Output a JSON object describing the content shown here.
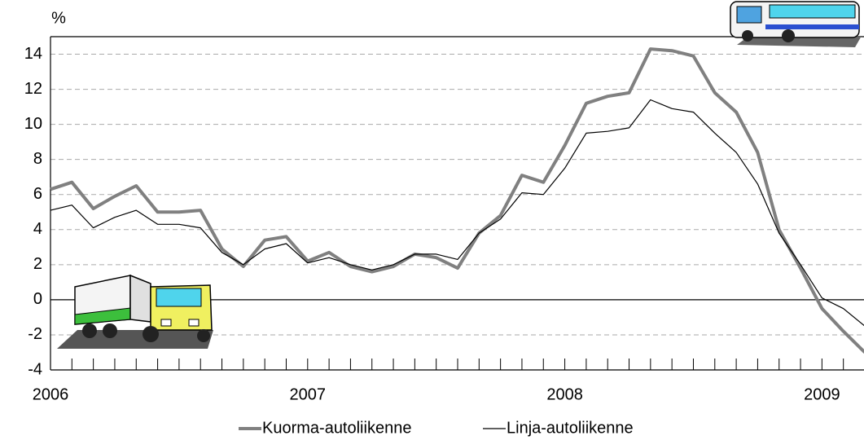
{
  "chart_data": {
    "type": "line",
    "y_label": "%",
    "categories": [
      "2006",
      null,
      null,
      null,
      null,
      null,
      null,
      null,
      null,
      null,
      null,
      null,
      "2007",
      null,
      null,
      null,
      null,
      null,
      null,
      null,
      null,
      null,
      null,
      null,
      "2008",
      null,
      null,
      null,
      null,
      null,
      null,
      null,
      null,
      null,
      null,
      null,
      "2009",
      null,
      null
    ],
    "series": [
      {
        "name": "Kuorma-autoliikenne",
        "color": "#808080",
        "values": [
          6.3,
          6.7,
          5.2,
          5.9,
          6.5,
          5.0,
          5.0,
          5.1,
          2.9,
          1.9,
          3.4,
          3.6,
          2.2,
          2.7,
          1.9,
          1.6,
          1.9,
          2.6,
          2.4,
          1.8,
          3.8,
          4.8,
          7.1,
          6.7,
          8.8,
          11.2,
          11.6,
          11.8,
          14.3,
          14.2,
          13.9,
          11.8,
          10.7,
          8.4,
          4.0,
          1.8,
          -0.5,
          -1.8,
          -3.0
        ]
      },
      {
        "name": "Linja-autoliikenne",
        "color": "#000000",
        "values": [
          5.1,
          5.4,
          4.1,
          4.7,
          5.1,
          4.3,
          4.3,
          4.1,
          2.7,
          2.0,
          2.9,
          3.2,
          2.1,
          2.4,
          2.0,
          1.7,
          2.0,
          2.6,
          2.6,
          2.3,
          3.8,
          4.6,
          6.1,
          6.0,
          7.5,
          9.5,
          9.6,
          9.8,
          11.4,
          10.9,
          10.7,
          9.5,
          8.4,
          6.6,
          3.8,
          2.0,
          0.1,
          -0.5,
          -1.5
        ]
      }
    ],
    "ylim": [
      -4,
      15
    ],
    "yticks": [
      -4,
      -2,
      0,
      2,
      4,
      6,
      8,
      10,
      12,
      14
    ],
    "grid": true
  }
}
